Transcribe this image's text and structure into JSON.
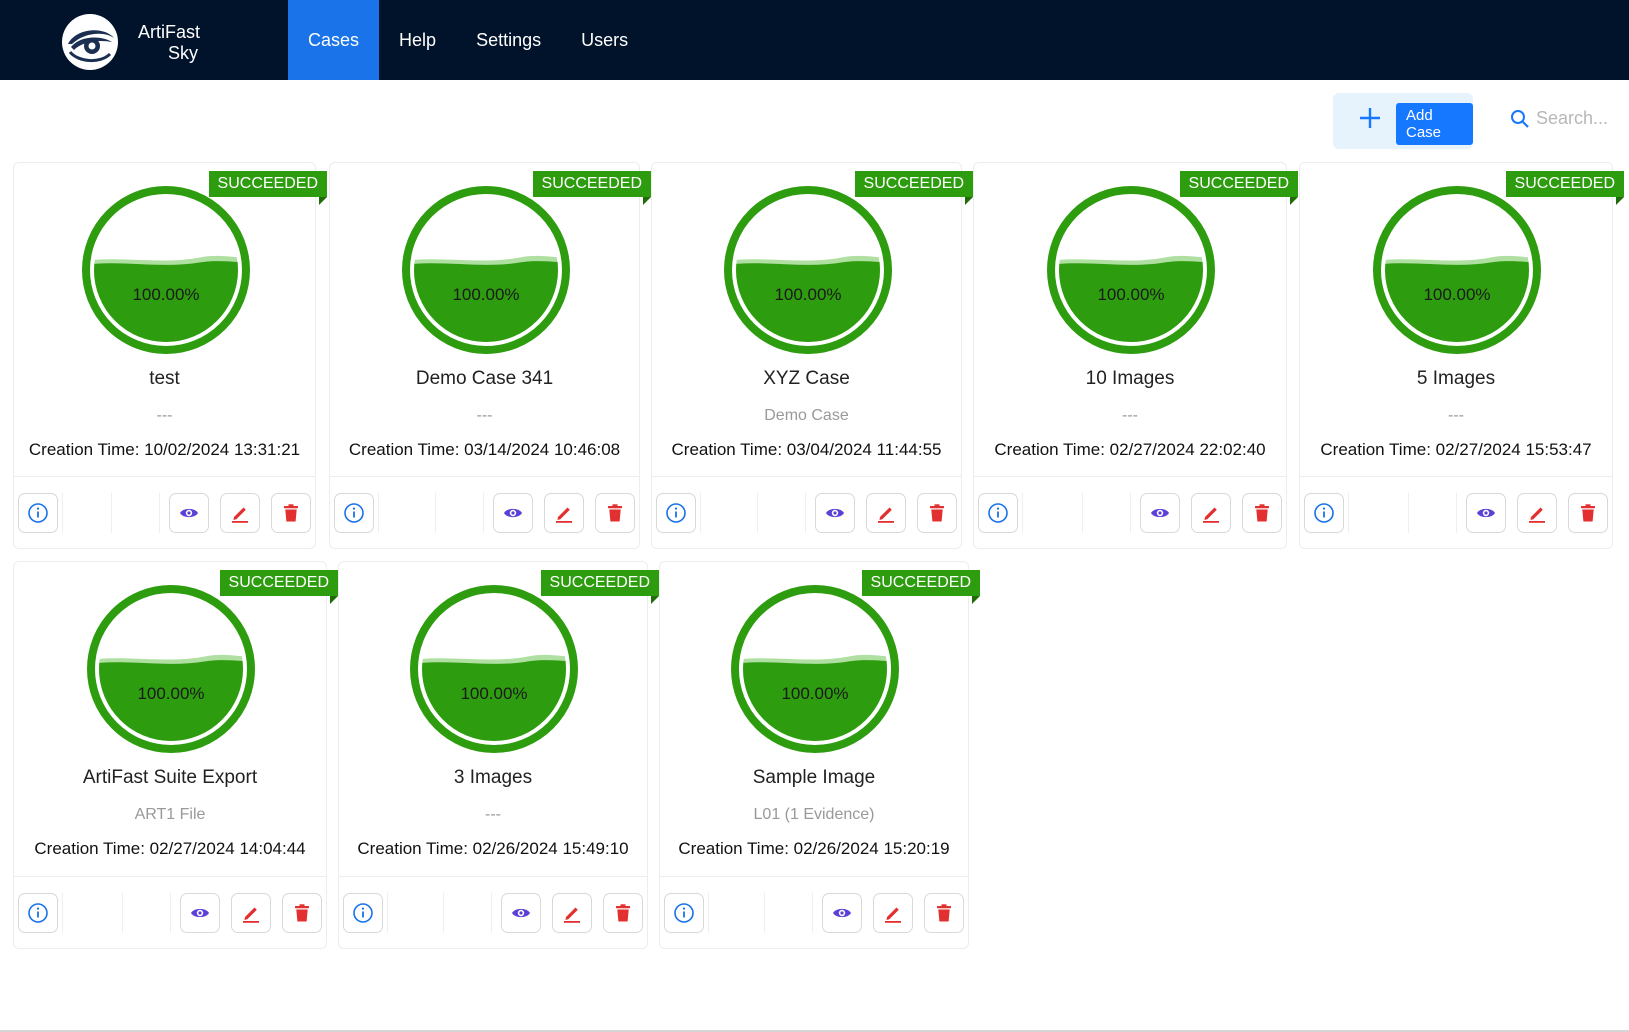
{
  "app": {
    "brand_line1": "ArtiFast",
    "brand_line2": "Sky",
    "logo_icon": "eye-logo-icon"
  },
  "nav": {
    "items": [
      {
        "label": "Cases",
        "active": true
      },
      {
        "label": "Help"
      },
      {
        "label": "Settings"
      },
      {
        "label": "Users"
      }
    ]
  },
  "toolbar": {
    "add_label": "Add Case",
    "add_icon": "plus-icon",
    "search_placeholder": "Search...",
    "search_icon": "search-icon"
  },
  "colors": {
    "nav_bg": "#00132b",
    "accent": "#1a73e8",
    "success": "#2e9c0f",
    "view": "#5b3fd6",
    "danger": "#e23030",
    "info": "#1a73e8"
  },
  "cases": [
    {
      "name": "test",
      "description": "---",
      "status": "SUCCEEDED",
      "progress": 100,
      "progress_label": "100.00%",
      "creation_time": "Creation Time: 10/02/2024 13:31:21"
    },
    {
      "name": "Demo Case 341",
      "description": "---",
      "status": "SUCCEEDED",
      "progress": 100,
      "progress_label": "100.00%",
      "creation_time": "Creation Time: 03/14/2024 10:46:08"
    },
    {
      "name": "XYZ Case",
      "description": "Demo Case",
      "status": "SUCCEEDED",
      "progress": 100,
      "progress_label": "100.00%",
      "creation_time": "Creation Time: 03/04/2024 11:44:55"
    },
    {
      "name": "10 Images",
      "description": "---",
      "status": "SUCCEEDED",
      "progress": 100,
      "progress_label": "100.00%",
      "creation_time": "Creation Time: 02/27/2024 22:02:40"
    },
    {
      "name": "5 Images",
      "description": "---",
      "status": "SUCCEEDED",
      "progress": 100,
      "progress_label": "100.00%",
      "creation_time": "Creation Time: 02/27/2024 15:53:47"
    },
    {
      "name": "ArtiFast Suite Export",
      "description": "ART1 File",
      "status": "SUCCEEDED",
      "progress": 100,
      "progress_label": "100.00%",
      "creation_time": "Creation Time: 02/27/2024 14:04:44"
    },
    {
      "name": "3 Images",
      "description": "---",
      "status": "SUCCEEDED",
      "progress": 100,
      "progress_label": "100.00%",
      "creation_time": "Creation Time: 02/26/2024 15:49:10"
    },
    {
      "name": "Sample Image",
      "description": "L01 (1 Evidence)",
      "status": "SUCCEEDED",
      "progress": 100,
      "progress_label": "100.00%",
      "creation_time": "Creation Time: 02/26/2024 15:20:19"
    }
  ],
  "card_actions": {
    "info_icon": "info-icon",
    "view_icon": "eye-icon",
    "edit_icon": "pencil-icon",
    "delete_icon": "trash-icon"
  }
}
